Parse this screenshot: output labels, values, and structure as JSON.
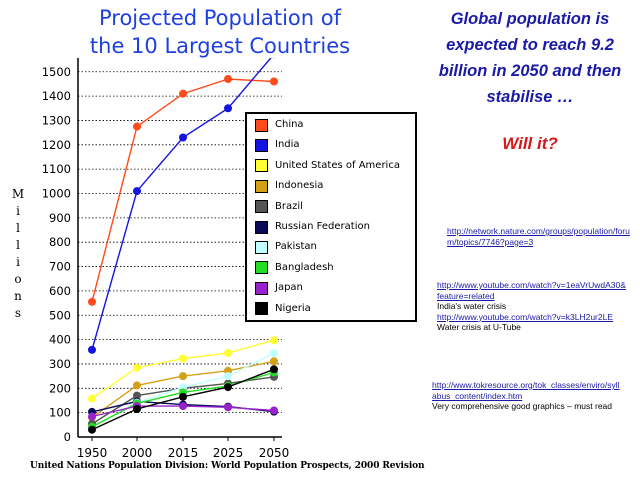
{
  "chart_data": {
    "type": "line",
    "title": "Projected Population of the 10 Largest Countries",
    "title_lines": [
      "Projected Population of",
      "the 10 Largest Countries"
    ],
    "ylabel": "Millions",
    "xlabel": "",
    "source": "United Nations Population Division: World Population Prospects, 2000 Revision",
    "x": [
      1950,
      2000,
      2015,
      2025,
      2050
    ],
    "x_labels": [
      "1950",
      "2000",
      "2015",
      "2025",
      "2050"
    ],
    "y_ticks": [
      0,
      100,
      200,
      300,
      400,
      500,
      600,
      700,
      800,
      900,
      1000,
      1100,
      1200,
      1300,
      1400,
      1500
    ],
    "ylim": [
      0,
      1550
    ],
    "grid": true,
    "series": [
      {
        "name": "China",
        "color": "#ff4a1c",
        "values": [
          555,
          1275,
          1410,
          1470,
          1460
        ]
      },
      {
        "name": "India",
        "color": "#1414e0",
        "values": [
          358,
          1010,
          1230,
          1350,
          1572
        ]
      },
      {
        "name": "United States of America",
        "color": "#ffff33",
        "values": [
          158,
          285,
          322,
          345,
          397
        ]
      },
      {
        "name": "Indonesia",
        "color": "#d4a017",
        "values": [
          80,
          212,
          250,
          272,
          311
        ]
      },
      {
        "name": "Brazil",
        "color": "#555555",
        "values": [
          54,
          170,
          200,
          220,
          247
        ]
      },
      {
        "name": "Russian Federation",
        "color": "#0a0a5a",
        "values": [
          103,
          146,
          133,
          125,
          104
        ]
      },
      {
        "name": "Pakistan",
        "color": "#bfffff",
        "values": [
          40,
          141,
          204,
          250,
          344
        ]
      },
      {
        "name": "Bangladesh",
        "color": "#22dd22",
        "values": [
          42,
          138,
          183,
          210,
          265
        ]
      },
      {
        "name": "Japan",
        "color": "#9922cc",
        "values": [
          84,
          127,
          127,
          122,
          109
        ]
      },
      {
        "name": "Nigeria",
        "color": "#000000",
        "values": [
          30,
          115,
          165,
          205,
          278
        ]
      }
    ]
  },
  "headline": "Global population is expected to reach 9.2 billion in 2050 and then stabilise …",
  "question": "Will it?",
  "links": {
    "nature": {
      "url": "http://network.nature.com/groups/population/forum/topics/7746?page=3"
    },
    "youtube1": {
      "url": "http://www.youtube.com/watch?v=1eaVrUwdA30&feature=related",
      "note": "India's water crisis"
    },
    "youtube2": {
      "url": "http://www.youtube.com/watch?v=k3LH2ur2LE",
      "note": "Water crisis at U-Tube"
    },
    "tokresource": {
      "url": "http://www.tokresource.org/tok_classes/enviro/syllabus_content/index.htm",
      "note": "Very comprehensive good graphics – must read"
    }
  }
}
